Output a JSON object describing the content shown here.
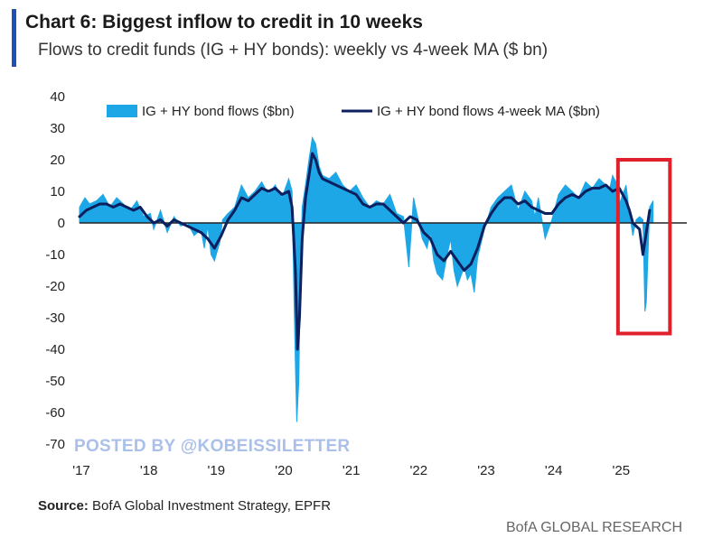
{
  "header": {
    "title": "Chart 6: Biggest inflow to credit in 10 weeks",
    "subtitle": "Flows to credit funds (IG + HY bonds): weekly vs 4-week MA ($ bn)"
  },
  "watermark": "POSTED BY @KOBEISSILETTER",
  "footer": {
    "source_label": "Source:",
    "source_text": " BofA Global Investment Strategy, EPFR",
    "brand": "BofA GLOBAL RESEARCH"
  },
  "colors": {
    "accent_bar": "#1f4fb8",
    "weekly_fill": "#1ea7e6",
    "ma_line": "#0c1f5e",
    "highlight_box": "#e0202a",
    "zero_line": "#222222"
  },
  "chart_data": {
    "type": "area",
    "title": "Chart 6: Biggest inflow to credit in 10 weeks",
    "ylim": [
      -70,
      40
    ],
    "yticks": [
      40,
      30,
      20,
      10,
      0,
      -10,
      -20,
      -30,
      -40,
      -50,
      -60,
      -70
    ],
    "ytick_labels": [
      "40",
      "30",
      "20",
      "10",
      "0",
      "-10",
      "-20",
      "-30",
      "-40",
      "-50",
      "-60",
      "-70"
    ],
    "xlim": [
      2017.0,
      2026.0
    ],
    "xticks": [
      2017,
      2018,
      2019,
      2020,
      2021,
      2022,
      2023,
      2024,
      2025
    ],
    "xtick_labels": [
      "'17",
      "'18",
      "'19",
      "'20",
      "'21",
      "'22",
      "'23",
      "'24",
      "'25"
    ],
    "legend": [
      "IG + HY bond flows ($bn)",
      "IG + HY bond flows 4-week MA ($bn)"
    ],
    "highlight_range": {
      "x": [
        2024.98,
        2025.75
      ],
      "y": [
        -35,
        20
      ]
    },
    "series": [
      {
        "name": "IG + HY bond flows ($bn)",
        "x": [
          2017.0,
          2017.08,
          2017.15,
          2017.25,
          2017.35,
          2017.45,
          2017.55,
          2017.65,
          2017.75,
          2017.85,
          2017.95,
          2018.05,
          2018.1,
          2018.15,
          2018.2,
          2018.3,
          2018.4,
          2018.5,
          2018.6,
          2018.7,
          2018.8,
          2018.85,
          2018.9,
          2018.95,
          2019.0,
          2019.08,
          2019.12,
          2019.2,
          2019.3,
          2019.4,
          2019.5,
          2019.6,
          2019.7,
          2019.8,
          2019.9,
          2020.0,
          2020.1,
          2020.15,
          2020.18,
          2020.2,
          2020.22,
          2020.25,
          2020.27,
          2020.3,
          2020.35,
          2020.4,
          2020.45,
          2020.5,
          2020.55,
          2020.6,
          2020.7,
          2020.8,
          2020.9,
          2021.0,
          2021.1,
          2021.2,
          2021.3,
          2021.4,
          2021.5,
          2021.6,
          2021.7,
          2021.8,
          2021.88,
          2021.95,
          2022.0,
          2022.08,
          2022.15,
          2022.2,
          2022.25,
          2022.3,
          2022.38,
          2022.45,
          2022.5,
          2022.55,
          2022.6,
          2022.7,
          2022.75,
          2022.8,
          2022.85,
          2022.9,
          2023.0,
          2023.1,
          2023.2,
          2023.3,
          2023.4,
          2023.5,
          2023.6,
          2023.7,
          2023.75,
          2023.8,
          2023.9,
          2024.0,
          2024.1,
          2024.2,
          2024.3,
          2024.4,
          2024.5,
          2024.6,
          2024.7,
          2024.8,
          2024.85,
          2024.9,
          2024.95,
          2025.0,
          2025.05,
          2025.1,
          2025.15,
          2025.2,
          2025.25,
          2025.3,
          2025.35,
          2025.38,
          2025.4,
          2025.45,
          2025.5
        ],
        "values": [
          5,
          8,
          6,
          7,
          9,
          5,
          8,
          6,
          4,
          7,
          2,
          3,
          -2,
          1,
          4,
          -3,
          2,
          -1,
          0,
          -4,
          -2,
          -8,
          -1,
          -10,
          -12,
          -6,
          1,
          3,
          5,
          12,
          8,
          10,
          13,
          9,
          12,
          8,
          14,
          10,
          -25,
          -45,
          -63,
          -50,
          -20,
          5,
          12,
          20,
          27,
          25,
          18,
          15,
          14,
          16,
          12,
          10,
          12,
          8,
          5,
          7,
          6,
          9,
          3,
          2,
          -14,
          8,
          3,
          -5,
          -8,
          -3,
          -12,
          -16,
          -18,
          -10,
          -5,
          -15,
          -20,
          -14,
          -18,
          -16,
          -22,
          -11,
          -2,
          5,
          8,
          10,
          12,
          4,
          10,
          7,
          2,
          8,
          -5,
          1,
          9,
          12,
          10,
          8,
          13,
          11,
          14,
          12,
          10,
          15,
          13,
          6,
          9,
          12,
          3,
          -4,
          1,
          2,
          1,
          -28,
          -25,
          5,
          7
        ]
      },
      {
        "name": "IG + HY bond flows 4-week MA ($bn)",
        "x": [
          2017.0,
          2017.1,
          2017.2,
          2017.3,
          2017.4,
          2017.5,
          2017.6,
          2017.7,
          2017.8,
          2017.9,
          2018.0,
          2018.1,
          2018.2,
          2018.3,
          2018.4,
          2018.5,
          2018.6,
          2018.7,
          2018.8,
          2018.9,
          2019.0,
          2019.1,
          2019.2,
          2019.3,
          2019.4,
          2019.5,
          2019.6,
          2019.7,
          2019.8,
          2019.9,
          2020.0,
          2020.1,
          2020.15,
          2020.2,
          2020.23,
          2020.26,
          2020.3,
          2020.35,
          2020.4,
          2020.45,
          2020.5,
          2020.55,
          2020.6,
          2020.7,
          2020.8,
          2020.9,
          2021.0,
          2021.1,
          2021.2,
          2021.3,
          2021.4,
          2021.5,
          2021.6,
          2021.7,
          2021.8,
          2021.9,
          2022.0,
          2022.1,
          2022.2,
          2022.3,
          2022.4,
          2022.5,
          2022.6,
          2022.7,
          2022.8,
          2022.9,
          2023.0,
          2023.1,
          2023.2,
          2023.3,
          2023.4,
          2023.5,
          2023.6,
          2023.7,
          2023.8,
          2023.9,
          2024.0,
          2024.1,
          2024.2,
          2024.3,
          2024.4,
          2024.5,
          2024.6,
          2024.7,
          2024.8,
          2024.9,
          2025.0,
          2025.05,
          2025.1,
          2025.15,
          2025.2,
          2025.25,
          2025.3,
          2025.35,
          2025.4,
          2025.45
        ],
        "values": [
          2,
          4,
          5,
          6,
          6,
          5,
          6,
          5,
          4,
          5,
          2,
          0,
          1,
          -1,
          1,
          0,
          -1,
          -2,
          -3,
          -5,
          -8,
          -4,
          1,
          4,
          8,
          7,
          9,
          11,
          10,
          11,
          9,
          10,
          5,
          -15,
          -40,
          -30,
          -5,
          8,
          15,
          22,
          20,
          16,
          14,
          13,
          12,
          11,
          10,
          9,
          6,
          5,
          6,
          6,
          4,
          2,
          0,
          2,
          1,
          -3,
          -5,
          -10,
          -12,
          -9,
          -12,
          -15,
          -13,
          -8,
          -1,
          3,
          6,
          8,
          8,
          6,
          7,
          5,
          4,
          3,
          3,
          6,
          8,
          9,
          8,
          10,
          11,
          11,
          12,
          10,
          11,
          9,
          7,
          4,
          0,
          -1,
          -2,
          -10,
          -3,
          4
        ]
      }
    ]
  }
}
